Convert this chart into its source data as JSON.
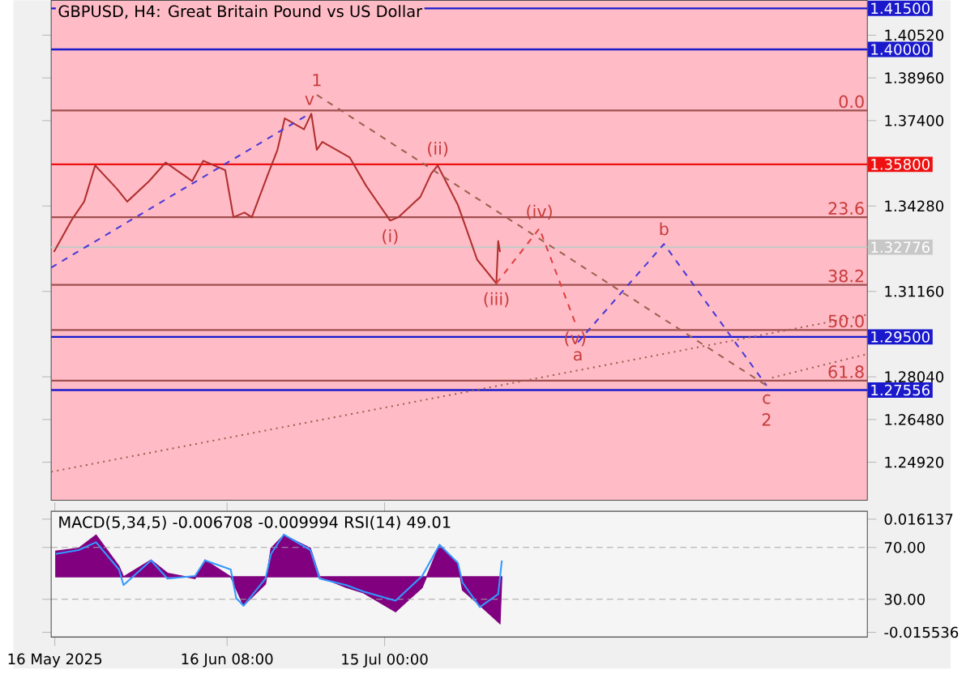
{
  "chart_data": [
    {
      "type": "line",
      "title": "GBPUSD, H4:  Great Britain Pound vs US Dollar",
      "xlim": [
        "2025-05-15T08:00",
        "2025-10-10T20:00"
      ],
      "ylim": [
        1.2353,
        1.4179
      ],
      "tick_labels": "y",
      "yticks": [
        {
          "value": 1.4052,
          "label": "1.40520"
        },
        {
          "value": 1.3896,
          "label": "1.38960"
        },
        {
          "value": 1.374,
          "label": "1.37400"
        },
        {
          "value": 1.3428,
          "label": "1.34280"
        },
        {
          "value": 1.3116,
          "label": "1.31160"
        },
        {
          "value": 1.2804,
          "label": "1.28040"
        },
        {
          "value": 1.2648,
          "label": "1.26480"
        },
        {
          "value": 1.2492,
          "label": "1.24920"
        }
      ],
      "series": [
        {
          "color": "#b03030",
          "x": [
            "2025-05-15T20:00",
            "2025-05-19T00:00",
            "2025-05-21T08:00",
            "2025-05-23T08:00",
            "2025-05-27T08:00",
            "2025-05-29T04:00",
            "2025-06-02T04:00",
            "2025-06-05T04:00",
            "2025-06-10T00:00",
            "2025-06-12T00:00",
            "2025-06-16T00:00",
            "2025-06-17T12:00",
            "2025-06-19T12:00",
            "2025-06-20T20:00",
            "2025-06-23T20:00",
            "2025-06-25T12:00",
            "2025-06-26T20:00",
            "2025-06-30T08:00",
            "2025-07-01T16:00",
            "2025-07-02T16:00",
            "2025-07-03T16:00",
            "2025-07-08T16:00",
            "2025-07-11T16:00",
            "2025-07-16T00:00",
            "2025-07-17T12:00",
            "2025-07-21T12:00",
            "2025-07-23T12:00",
            "2025-07-24T16:00",
            "2025-07-28T08:00",
            "2025-07-30T08:00",
            "2025-07-31T20:00",
            "2025-08-04T08:00",
            "2025-08-04T16:00",
            "2025-08-05T00:00"
          ],
          "values": [
            1.326,
            1.3375,
            1.3444,
            1.3576,
            1.349,
            1.3444,
            1.3519,
            1.3587,
            1.3519,
            1.3593,
            1.3559,
            1.3387,
            1.3404,
            1.3387,
            1.3547,
            1.3633,
            1.3748,
            1.3708,
            1.3765,
            1.3633,
            1.3662,
            1.3605,
            1.3501,
            1.3375,
            1.3387,
            1.3461,
            1.3547,
            1.3576,
            1.3432,
            1.3318,
            1.3232,
            1.3145,
            1.33,
            1.326
          ]
        },
        {
          "color": "#4a3ad8",
          "line_style": "dashed",
          "x": [
            "2025-05-15T08:00",
            "2025-07-01T08:00"
          ],
          "values": [
            1.3203,
            1.3765
          ]
        },
        {
          "color": "#e04040",
          "line_style": "dashed",
          "x": [
            "2025-08-04T08:00",
            "2025-08-12T04:00",
            "2025-08-18T16:00"
          ],
          "values": [
            1.3145,
            1.3346,
            1.3002
          ]
        },
        {
          "color": "#4a3ad8",
          "line_style": "dashed",
          "x": [
            "2025-08-19T04:00",
            "2025-09-03T20:00",
            "2025-09-22T12:00"
          ],
          "values": [
            1.293,
            1.3289,
            1.2772
          ]
        },
        {
          "color": "#a06050",
          "line_style": "dashed",
          "x": [
            "2025-07-02T16:00",
            "2025-09-22T12:00"
          ],
          "values": [
            1.3834,
            1.2772
          ]
        },
        {
          "color": "#a06050",
          "line_style": "dotted",
          "x": [
            "2025-05-15T08:00",
            "2025-10-10T20:00"
          ],
          "values": [
            1.2457,
            1.3031
          ]
        },
        {
          "color": "#a06050",
          "line_style": "dotted",
          "x": [
            "2025-09-23T12:00",
            "2025-10-10T20:00"
          ],
          "values": [
            1.2801,
            1.2887
          ]
        }
      ],
      "ref_lines": [
        {
          "axis": "y",
          "value": 1.3777,
          "color": "#a05050"
        },
        {
          "axis": "y",
          "value": 1.3387,
          "color": "#a05050"
        },
        {
          "axis": "y",
          "value": 1.314,
          "color": "#a05050"
        },
        {
          "axis": "y",
          "value": 1.2975,
          "color": "#a05050"
        },
        {
          "axis": "y",
          "value": 1.279,
          "color": "#a05050"
        },
        {
          "axis": "y",
          "value": 1.32776,
          "color": "#c8c8c8",
          "label": "1.32776"
        },
        {
          "axis": "y",
          "value": 1.415,
          "color": "#1a1acc",
          "label": "1.41500"
        },
        {
          "axis": "y",
          "value": 1.4,
          "color": "#1a1acc",
          "label": "1.40000"
        },
        {
          "axis": "y",
          "value": 1.358,
          "color": "#ee1111",
          "label": "1.35800"
        },
        {
          "axis": "y",
          "value": 1.295,
          "color": "#1a1acc",
          "label": "1.29500"
        },
        {
          "axis": "y",
          "value": 1.27556,
          "color": "#1a1acc",
          "label": "1.27556"
        }
      ],
      "annotations": [
        {
          "text": "v",
          "x": "2025-07-01T08:00",
          "y": 1.3765
        },
        {
          "text": "1",
          "x": "2025-07-02T16:00",
          "y": 1.3834
        },
        {
          "text": "(i)",
          "x": "2025-07-16T00:00",
          "y": 1.3375
        },
        {
          "text": "(ii)",
          "x": "2025-07-24T16:00",
          "y": 1.3576
        },
        {
          "text": "(iii)",
          "x": "2025-08-04T08:00",
          "y": 1.3145
        },
        {
          "text": "(iv)",
          "x": "2025-08-12T04:00",
          "y": 1.3346
        },
        {
          "text": "(v)",
          "x": "2025-08-18T16:00",
          "y": 1.3002
        },
        {
          "text": "a",
          "x": "2025-08-19T04:00",
          "y": 1.293
        },
        {
          "text": "b",
          "x": "2025-09-03T20:00",
          "y": 1.3289
        },
        {
          "text": "c",
          "x": "2025-09-22T12:00",
          "y": 1.2772
        },
        {
          "text": "2",
          "x": "2025-09-22T12:00",
          "y": 1.2772
        },
        {
          "text": "0.0",
          "x": "2025-10-10T20:00",
          "y": 1.3777
        },
        {
          "text": "23.6",
          "x": "2025-10-10T20:00",
          "y": 1.3387
        },
        {
          "text": "38.2",
          "x": "2025-10-10T20:00",
          "y": 1.314
        },
        {
          "text": "50.0",
          "x": "2025-10-10T20:00",
          "y": 1.2975
        },
        {
          "text": "61.8",
          "x": "2025-10-10T20:00",
          "y": 1.279
        }
      ]
    },
    {
      "type": "line",
      "title": "MACD(5,34,5) -0.006708 -0.009994 RSI(14) 49.01",
      "xlim": [
        "2025-05-15T08:00",
        "2025-10-10T20:00"
      ],
      "ylim": [
        0.9,
        97.9
      ],
      "grid": "y",
      "xticks": [
        {
          "value": "2025-05-16T00:00",
          "label": "16 May 2025"
        },
        {
          "value": "2025-06-16T08:00",
          "label": "16 Jun 08:00"
        },
        {
          "value": "2025-07-15T00:00",
          "label": "15 Jul 00:00"
        }
      ],
      "yticks": [
        {
          "value": 70,
          "label": "70.00"
        },
        {
          "value": 30,
          "label": "30.00"
        }
      ],
      "y2lim": [
        -0.01686,
        0.01834
      ],
      "y2ticks": [
        0.016137,
        -0.015536
      ],
      "series": [
        {
          "type": "area",
          "axis": "y2",
          "color": "#800080",
          "x": [
            "2025-05-16T04:00",
            "2025-05-20T08:00",
            "2025-05-23T12:00",
            "2025-05-27T16:00",
            "2025-05-28T12:00",
            "2025-06-02T12:00",
            "2025-06-05T12:00",
            "2025-06-10T12:00",
            "2025-06-12T08:00",
            "2025-06-17T00:00",
            "2025-06-19T08:00",
            "2025-06-23T08:00",
            "2025-06-24T08:00",
            "2025-06-26T16:00",
            "2025-07-01T12:00",
            "2025-07-03T04:00",
            "2025-07-08T00:00",
            "2025-07-11T04:00",
            "2025-07-17T00:00",
            "2025-07-21T20:00",
            "2025-07-25T00:00",
            "2025-07-28T08:00",
            "2025-07-29T04:00",
            "2025-08-01T08:00",
            "2025-08-05T00:00",
            "2025-08-05T08:00"
          ],
          "values": [
            0.0072,
            0.008,
            0.0117,
            0.003,
            0,
            0.0047,
            0.001,
            -0.0005,
            0.0047,
            0,
            -0.008,
            -0.002,
            0.008,
            0.0117,
            0.008,
            0,
            -0.003,
            -0.0045,
            -0.0098,
            -0.003,
            0.0089,
            0.0038,
            -0.0037,
            -0.008,
            -0.0131,
            0
          ]
        },
        {
          "type": "line",
          "color": "#3399ff",
          "x": [
            "2025-05-16T04:00",
            "2025-05-20T08:00",
            "2025-05-23T12:00",
            "2025-05-27T16:00",
            "2025-05-28T12:00",
            "2025-06-02T12:00",
            "2025-06-05T12:00",
            "2025-06-10T12:00",
            "2025-06-12T08:00",
            "2025-06-17T00:00",
            "2025-06-18T00:00",
            "2025-06-19T08:00",
            "2025-06-23T08:00",
            "2025-06-24T08:00",
            "2025-06-26T16:00",
            "2025-07-01T12:00",
            "2025-07-03T04:00",
            "2025-07-08T00:00",
            "2025-07-11T04:00",
            "2025-07-17T00:00",
            "2025-07-21T20:00",
            "2025-07-25T00:00",
            "2025-07-28T08:00",
            "2025-07-29T04:00",
            "2025-08-01T08:00",
            "2025-08-04T16:00",
            "2025-08-05T08:00"
          ],
          "values": [
            65,
            68,
            74,
            53,
            41,
            60,
            46,
            48,
            60,
            53,
            31,
            25,
            46,
            65,
            80,
            68,
            46,
            41,
            36,
            29,
            48,
            72,
            58,
            43,
            24,
            34,
            60
          ]
        }
      ]
    }
  ]
}
